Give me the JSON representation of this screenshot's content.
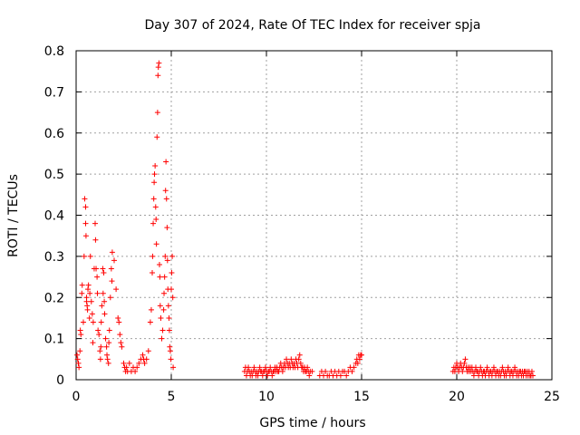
{
  "chart_data": {
    "type": "scatter",
    "title": "Day 307 of 2024, Rate Of TEC Index for receiver spja",
    "xlabel": "GPS time / hours",
    "ylabel": "ROTI / TECUs",
    "xlim": [
      0,
      25
    ],
    "ylim": [
      0,
      0.8
    ],
    "xticks": [
      0,
      5,
      10,
      15,
      20,
      25
    ],
    "xtick_labels": [
      "0",
      "5",
      "10",
      "15",
      "20",
      "25"
    ],
    "yticks": [
      0,
      0.1,
      0.2,
      0.3,
      0.4,
      0.5,
      0.6,
      0.7,
      0.8
    ],
    "ytick_labels": [
      "0",
      "0.1",
      "0.2",
      "0.3",
      "0.4",
      "0.5",
      "0.6",
      "0.7",
      "0.8"
    ],
    "grid": true,
    "marker": "+",
    "color": "#ff0000",
    "series": [
      {
        "x": [
          0.05,
          0.08,
          0.12,
          0.15,
          0.2,
          0.22,
          0.25,
          0.3,
          0.32,
          0.38,
          0.42,
          0.45,
          0.5,
          0.5,
          0.52,
          0.55,
          0.55,
          0.58,
          0.6,
          0.62,
          0.65,
          0.7,
          0.72,
          0.75,
          0.8,
          0.85,
          0.88,
          0.9,
          0.95,
          1.0,
          1.02,
          1.05,
          1.1,
          1.12,
          1.15,
          1.2,
          1.25,
          1.28,
          1.3,
          1.32,
          1.35,
          1.4,
          1.42,
          1.45,
          1.48,
          1.5,
          1.55,
          1.6,
          1.62,
          1.65,
          1.7,
          1.72,
          1.75,
          1.8,
          1.85,
          1.88,
          1.9,
          2.0,
          2.1,
          2.2,
          2.25,
          2.3,
          2.35,
          2.4,
          2.5,
          2.55,
          2.6,
          2.65,
          2.7,
          2.8,
          2.9,
          3.0,
          3.1,
          3.2,
          3.3,
          3.4,
          3.5,
          3.55,
          3.6,
          3.7,
          3.8,
          3.9,
          3.95,
          4.0,
          4.02,
          4.05,
          4.08,
          4.1,
          4.12,
          4.15,
          4.18,
          4.2,
          4.22,
          4.25,
          4.28,
          4.3,
          4.32,
          4.35,
          4.38,
          4.4,
          4.42,
          4.45,
          4.5,
          4.55,
          4.6,
          4.62,
          4.65,
          4.68,
          4.7,
          4.72,
          4.75,
          4.78,
          4.8,
          4.82,
          4.85,
          4.88,
          4.9,
          4.92,
          4.95,
          4.98,
          5.0,
          5.02,
          5.05,
          5.08,
          5.1
        ],
        "y": [
          0.06,
          0.05,
          0.04,
          0.03,
          0.07,
          0.12,
          0.11,
          0.21,
          0.23,
          0.14,
          0.3,
          0.44,
          0.42,
          0.38,
          0.35,
          0.2,
          0.19,
          0.18,
          0.17,
          0.22,
          0.23,
          0.15,
          0.21,
          0.3,
          0.19,
          0.16,
          0.09,
          0.14,
          0.27,
          0.38,
          0.34,
          0.27,
          0.25,
          0.21,
          0.12,
          0.11,
          0.07,
          0.05,
          0.08,
          0.14,
          0.18,
          0.27,
          0.21,
          0.26,
          0.19,
          0.16,
          0.1,
          0.08,
          0.06,
          0.05,
          0.04,
          0.09,
          0.12,
          0.2,
          0.27,
          0.24,
          0.31,
          0.29,
          0.22,
          0.15,
          0.14,
          0.11,
          0.09,
          0.08,
          0.04,
          0.03,
          0.02,
          0.03,
          0.02,
          0.04,
          0.02,
          0.03,
          0.02,
          0.03,
          0.04,
          0.05,
          0.06,
          0.05,
          0.04,
          0.05,
          0.07,
          0.14,
          0.17,
          0.26,
          0.3,
          0.38,
          0.44,
          0.48,
          0.5,
          0.52,
          0.42,
          0.39,
          0.33,
          0.59,
          0.65,
          0.74,
          0.76,
          0.77,
          0.28,
          0.25,
          0.18,
          0.15,
          0.1,
          0.12,
          0.17,
          0.21,
          0.25,
          0.3,
          0.46,
          0.53,
          0.44,
          0.37,
          0.29,
          0.22,
          0.18,
          0.15,
          0.12,
          0.08,
          0.07,
          0.05,
          0.22,
          0.26,
          0.3,
          0.2,
          0.03
        ]
      },
      {
        "x": [
          8.85,
          8.9,
          8.95,
          9.0,
          9.05,
          9.1,
          9.15,
          9.2,
          9.25,
          9.3,
          9.35,
          9.4,
          9.45,
          9.5,
          9.55,
          9.6,
          9.65,
          9.7,
          9.75,
          9.8,
          9.85,
          9.9,
          9.95,
          10.0,
          10.05,
          10.1,
          10.15,
          10.2,
          10.25,
          10.3,
          10.35,
          10.4,
          10.45,
          10.5,
          10.55,
          10.6,
          10.65,
          10.7,
          10.75,
          10.8,
          10.85,
          10.9,
          10.95,
          11.0,
          11.05,
          11.1,
          11.15,
          11.2,
          11.25,
          11.3,
          11.35,
          11.4,
          11.45,
          11.5,
          11.55,
          11.6,
          11.65,
          11.7,
          11.75,
          11.8,
          11.85,
          11.9,
          11.95,
          12.0,
          12.05,
          12.1,
          12.15,
          12.2,
          12.25,
          12.3,
          12.4
        ],
        "y": [
          0.02,
          0.03,
          0.01,
          0.02,
          0.03,
          0.02,
          0.01,
          0.02,
          0.01,
          0.02,
          0.03,
          0.02,
          0.01,
          0.02,
          0.01,
          0.02,
          0.03,
          0.02,
          0.02,
          0.01,
          0.02,
          0.02,
          0.03,
          0.02,
          0.01,
          0.02,
          0.02,
          0.03,
          0.02,
          0.01,
          0.02,
          0.02,
          0.03,
          0.02,
          0.03,
          0.02,
          0.02,
          0.03,
          0.04,
          0.03,
          0.02,
          0.03,
          0.04,
          0.03,
          0.05,
          0.04,
          0.03,
          0.04,
          0.03,
          0.05,
          0.04,
          0.03,
          0.04,
          0.03,
          0.05,
          0.04,
          0.03,
          0.05,
          0.06,
          0.04,
          0.03,
          0.03,
          0.02,
          0.03,
          0.02,
          0.02,
          0.03,
          0.02,
          0.01,
          0.02,
          0.02
        ]
      },
      {
        "x": [
          12.8,
          12.9,
          13.0,
          13.1,
          13.2,
          13.3,
          13.4,
          13.5,
          13.6,
          13.7,
          13.8,
          13.9,
          14.0,
          14.1,
          14.2,
          14.3,
          14.4,
          14.5,
          14.6,
          14.7,
          14.75,
          14.8,
          14.85,
          14.9,
          14.95,
          15.0
        ],
        "y": [
          0.01,
          0.02,
          0.01,
          0.02,
          0.01,
          0.01,
          0.02,
          0.01,
          0.02,
          0.01,
          0.02,
          0.01,
          0.02,
          0.02,
          0.01,
          0.02,
          0.03,
          0.02,
          0.03,
          0.04,
          0.05,
          0.04,
          0.06,
          0.05,
          0.06,
          0.06
        ]
      },
      {
        "x": [
          19.8,
          19.85,
          19.9,
          19.95,
          20.0,
          20.05,
          20.1,
          20.15,
          20.2,
          20.25,
          20.3,
          20.35,
          20.4,
          20.45,
          20.5,
          20.55,
          20.6,
          20.65,
          20.7,
          20.75,
          20.8,
          20.85,
          20.9,
          20.95,
          21.0,
          21.05,
          21.1,
          21.15,
          21.2,
          21.25,
          21.3,
          21.35,
          21.4,
          21.45,
          21.5,
          21.55,
          21.6,
          21.65,
          21.7,
          21.75,
          21.8,
          21.85,
          21.9,
          21.95,
          22.0,
          22.05,
          22.1,
          22.15,
          22.2,
          22.25,
          22.3,
          22.35,
          22.4,
          22.45,
          22.5,
          22.55,
          22.6,
          22.65,
          22.7,
          22.75,
          22.8,
          22.85,
          22.9,
          22.95,
          23.0,
          23.05,
          23.1,
          23.15,
          23.2,
          23.25,
          23.3,
          23.35,
          23.4,
          23.45,
          23.5,
          23.55,
          23.6,
          23.65,
          23.7,
          23.75,
          23.8,
          23.85,
          23.9,
          23.95,
          24.0
        ],
        "y": [
          0.02,
          0.03,
          0.02,
          0.03,
          0.04,
          0.03,
          0.02,
          0.03,
          0.04,
          0.03,
          0.02,
          0.03,
          0.04,
          0.05,
          0.03,
          0.02,
          0.03,
          0.02,
          0.03,
          0.02,
          0.03,
          0.02,
          0.01,
          0.02,
          0.03,
          0.02,
          0.02,
          0.01,
          0.02,
          0.03,
          0.02,
          0.01,
          0.02,
          0.02,
          0.01,
          0.02,
          0.03,
          0.02,
          0.01,
          0.02,
          0.02,
          0.01,
          0.02,
          0.03,
          0.02,
          0.01,
          0.02,
          0.02,
          0.01,
          0.02,
          0.01,
          0.02,
          0.03,
          0.02,
          0.01,
          0.02,
          0.01,
          0.02,
          0.03,
          0.02,
          0.01,
          0.02,
          0.02,
          0.01,
          0.02,
          0.03,
          0.02,
          0.01,
          0.02,
          0.01,
          0.02,
          0.02,
          0.01,
          0.02,
          0.01,
          0.02,
          0.02,
          0.01,
          0.02,
          0.01,
          0.02,
          0.01,
          0.01,
          0.02,
          0.01
        ]
      }
    ]
  }
}
